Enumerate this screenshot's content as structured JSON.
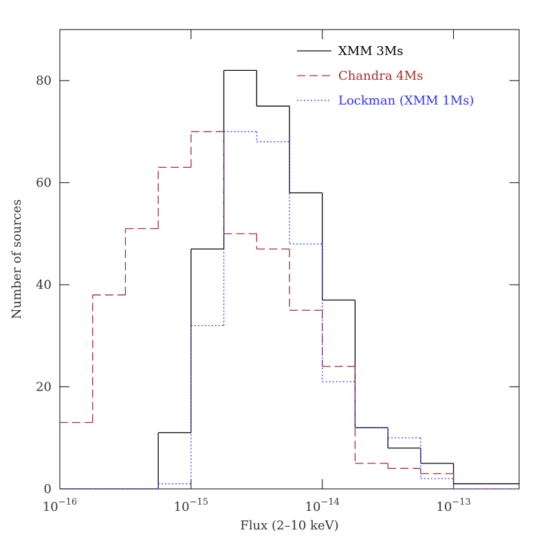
{
  "chart_data": {
    "type": "histogram",
    "xlabel": "Flux (2–10 keV)",
    "ylabel": "Number of sources",
    "xscale": "log",
    "bins": [
      1e-16,
      1.778e-16,
      3.162e-16,
      5.623e-16,
      1e-15,
      1.778e-15,
      3.162e-15,
      5.623e-15,
      1e-14,
      1.778e-14,
      3.162e-14,
      5.623e-14,
      1e-13,
      1.778e-13,
      3.162e-13
    ],
    "series": [
      {
        "name": "XMM 3Ms",
        "color": "#000000",
        "dash": "solid",
        "values": [
          0,
          0,
          0,
          11,
          47,
          82,
          75,
          58,
          37,
          12,
          8,
          5,
          1,
          1
        ]
      },
      {
        "name": "Chandra 4Ms",
        "color": "#a52a2a",
        "dash": "dashed",
        "values": [
          13,
          38,
          51,
          63,
          70,
          50,
          47,
          35,
          24,
          5,
          4,
          3,
          0,
          0
        ]
      },
      {
        "name": "Lockman (XMM 1Ms)",
        "color": "#3030ff",
        "dash": "dotted",
        "values": [
          0,
          0,
          0,
          1,
          32,
          70,
          68,
          48,
          21,
          12,
          10,
          2,
          0,
          0
        ]
      }
    ],
    "xlim": [
      1e-16,
      3.162e-13
    ],
    "xticks": [
      {
        "value": 1e-16,
        "label": "10",
        "exponent": "−16"
      },
      {
        "value": 1e-15,
        "label": "10",
        "exponent": "−15"
      },
      {
        "value": 1e-14,
        "label": "10",
        "exponent": "−14"
      },
      {
        "value": 1e-13,
        "label": "10",
        "exponent": "−13"
      }
    ],
    "ylim": [
      0,
      90
    ],
    "yticks": [
      0,
      20,
      40,
      60,
      80
    ],
    "legend": "top-right"
  }
}
